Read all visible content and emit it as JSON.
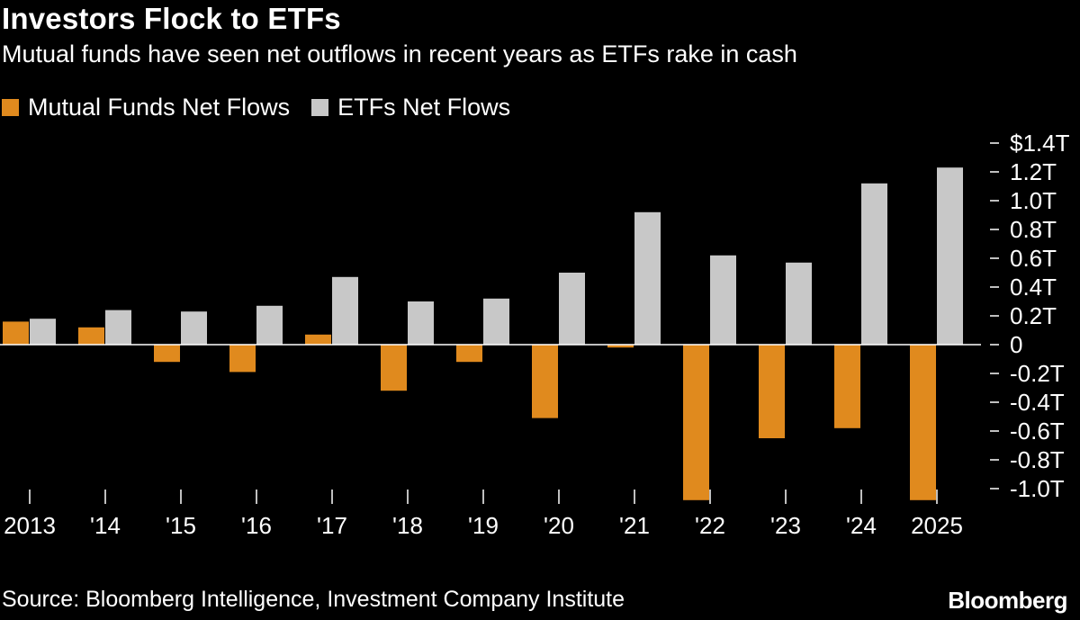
{
  "header": {
    "title": "Investors Flock to ETFs",
    "subtitle": "Mutual funds have seen net outflows in recent years as ETFs rake in cash"
  },
  "legend": {
    "items": [
      {
        "label": "Mutual Funds Net Flows",
        "color": "#e08a1e"
      },
      {
        "label": "ETFs Net Flows",
        "color": "#c8c8c8"
      }
    ]
  },
  "footer": {
    "source": "Source: Bloomberg Intelligence, Investment Company Institute",
    "brand": "Bloomberg"
  },
  "chart_data": {
    "type": "bar",
    "title": "Investors Flock to ETFs",
    "subtitle": "Mutual funds have seen net outflows in recent years as ETFs rake in cash",
    "xlabel": "",
    "ylabel": "",
    "categories": [
      "2013",
      "'14",
      "'15",
      "'16",
      "'17",
      "'18",
      "'19",
      "'20",
      "'21",
      "'22",
      "'23",
      "'24",
      "2025"
    ],
    "series": [
      {
        "name": "Mutual Funds Net Flows",
        "color": "#e08a1e",
        "values": [
          0.16,
          0.12,
          -0.12,
          -0.19,
          0.07,
          -0.32,
          -0.12,
          -0.51,
          -0.02,
          -1.08,
          -0.65,
          -0.58,
          -1.08
        ]
      },
      {
        "name": "ETFs Net Flows",
        "color": "#c8c8c8",
        "values": [
          0.18,
          0.24,
          0.23,
          0.27,
          0.47,
          0.3,
          0.32,
          0.5,
          0.92,
          0.62,
          0.57,
          1.12,
          1.23
        ]
      }
    ],
    "ylim": [
      -1.0,
      1.4
    ],
    "yticks": [
      {
        "value": 1.4,
        "label": "$1.4T"
      },
      {
        "value": 1.2,
        "label": "1.2T"
      },
      {
        "value": 1.0,
        "label": "1.0T"
      },
      {
        "value": 0.8,
        "label": "0.8T"
      },
      {
        "value": 0.6,
        "label": "0.6T"
      },
      {
        "value": 0.4,
        "label": "0.4T"
      },
      {
        "value": 0.2,
        "label": "0.2T"
      },
      {
        "value": 0,
        "label": "0"
      },
      {
        "value": -0.2,
        "label": "-0.2T"
      },
      {
        "value": -0.4,
        "label": "-0.4T"
      },
      {
        "value": -0.6,
        "label": "-0.6T"
      },
      {
        "value": -0.8,
        "label": "-0.8T"
      },
      {
        "value": -1.0,
        "label": "-1.0T"
      }
    ],
    "grid": false,
    "legend_position": "top-left",
    "axis_position": "right",
    "axis_color": "#ffffff"
  }
}
